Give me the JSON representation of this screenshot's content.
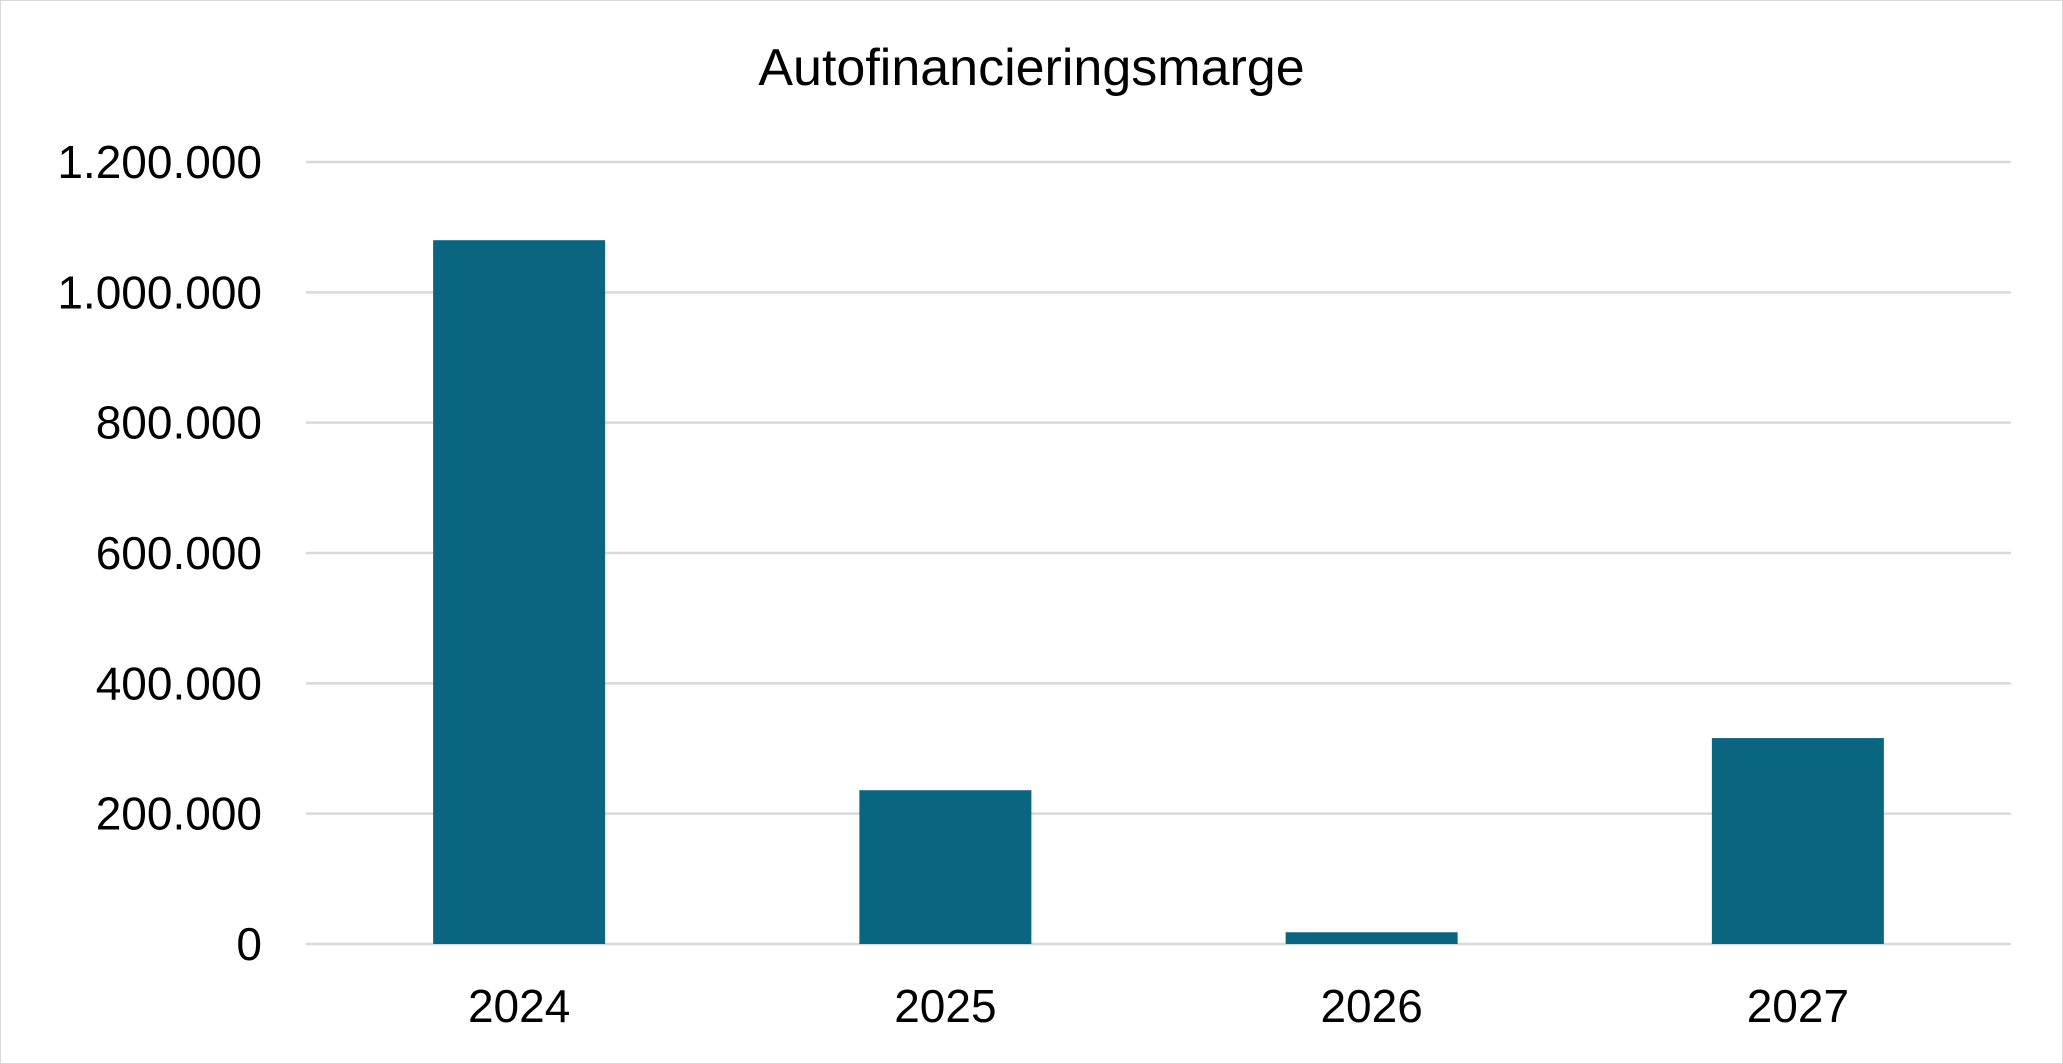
{
  "chart_data": {
    "type": "bar",
    "title": "Autofinancieringsmarge",
    "categories": [
      "2024",
      "2025",
      "2026",
      "2027"
    ],
    "values": [
      1080000,
      236000,
      18000,
      316000
    ],
    "ylim": [
      0,
      1200000
    ],
    "yticks": [
      0,
      200000,
      400000,
      600000,
      800000,
      1000000,
      1200000
    ],
    "ytick_labels": [
      "0",
      "200.000",
      "400.000",
      "600.000",
      "800.000",
      "1.000.000",
      "1.200.000"
    ],
    "xlabel": "",
    "ylabel": "",
    "grid": true,
    "legend": "none",
    "bar_color": "#0a6581",
    "grid_color": "#d9d9d9"
  }
}
